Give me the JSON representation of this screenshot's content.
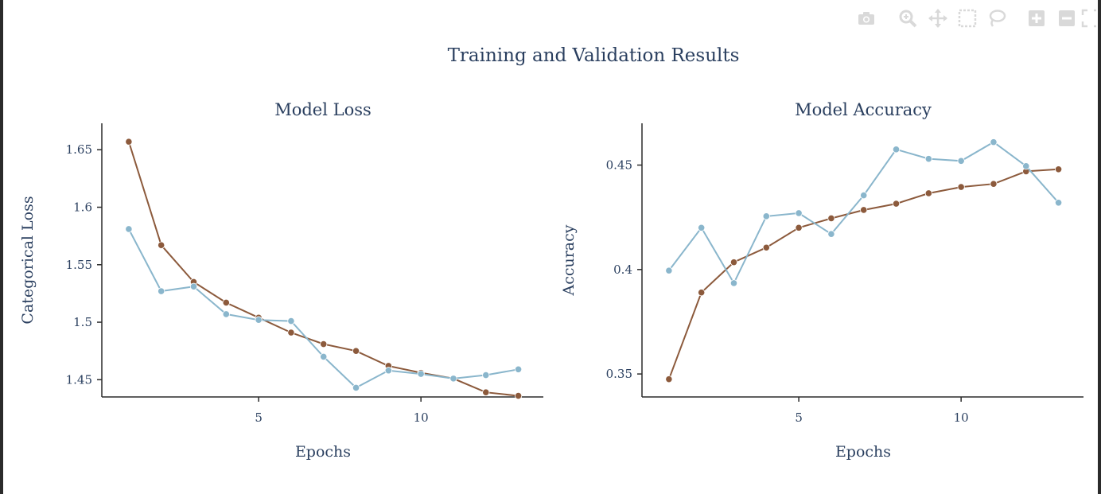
{
  "page": {
    "title": "Training and Validation Results"
  },
  "modebar": {
    "buttons": [
      "camera-icon",
      "zoom-icon",
      "pan-icon",
      "box-select-icon",
      "lasso-icon",
      "zoom-in-icon",
      "zoom-out-icon",
      "autoscale-icon"
    ]
  },
  "colors": {
    "train": "#8c5a3c",
    "val": "#8ab6cc",
    "axis": "#2b2b2b",
    "text": "#2a3f5f",
    "modebar": "#d9d9d9"
  },
  "chart_data": [
    {
      "type": "line",
      "title": "Model Loss",
      "xlabel": "Epochs",
      "ylabel": "Categorical Loss",
      "xlim": [
        0.17,
        13.77
      ],
      "ylim": [
        1.435,
        1.673
      ],
      "xticks": [
        5,
        10
      ],
      "xtick_labels": [
        "5",
        "10"
      ],
      "yticks": [
        1.45,
        1.5,
        1.55,
        1.6,
        1.65
      ],
      "ytick_labels": [
        "1.45",
        "1.5",
        "1.55",
        "1.6",
        "1.65"
      ],
      "grid": false,
      "x": [
        1,
        2,
        3,
        4,
        5,
        6,
        7,
        8,
        9,
        10,
        11,
        12,
        13
      ],
      "series": [
        {
          "color": "#8c5a3c",
          "values": [
            1.657,
            1.567,
            1.535,
            1.517,
            1.504,
            1.491,
            1.481,
            1.475,
            1.462,
            1.456,
            1.451,
            1.439,
            1.436
          ]
        },
        {
          "color": "#8ab6cc",
          "values": [
            1.581,
            1.527,
            1.531,
            1.507,
            1.502,
            1.501,
            1.47,
            1.443,
            1.458,
            1.455,
            1.451,
            1.454,
            1.459
          ]
        }
      ]
    },
    {
      "type": "line",
      "title": "Model Accuracy",
      "xlabel": "Epochs",
      "ylabel": "Accuracy",
      "xlim": [
        0.17,
        13.77
      ],
      "ylim": [
        0.339,
        0.47
      ],
      "xticks": [
        5,
        10
      ],
      "xtick_labels": [
        "5",
        "10"
      ],
      "yticks": [
        0.35,
        0.4,
        0.45
      ],
      "ytick_labels": [
        "0.35",
        "0.4",
        "0.45"
      ],
      "grid": false,
      "x": [
        1,
        2,
        3,
        4,
        5,
        6,
        7,
        8,
        9,
        10,
        11,
        12,
        13
      ],
      "series": [
        {
          "color": "#8c5a3c",
          "values": [
            0.3475,
            0.389,
            0.4035,
            0.4105,
            0.42,
            0.4245,
            0.4285,
            0.4315,
            0.4365,
            0.4395,
            0.441,
            0.447,
            0.448
          ]
        },
        {
          "color": "#8ab6cc",
          "values": [
            0.3995,
            0.42,
            0.3935,
            0.4255,
            0.427,
            0.417,
            0.4355,
            0.4575,
            0.453,
            0.452,
            0.461,
            0.4495,
            0.432
          ]
        }
      ]
    }
  ]
}
